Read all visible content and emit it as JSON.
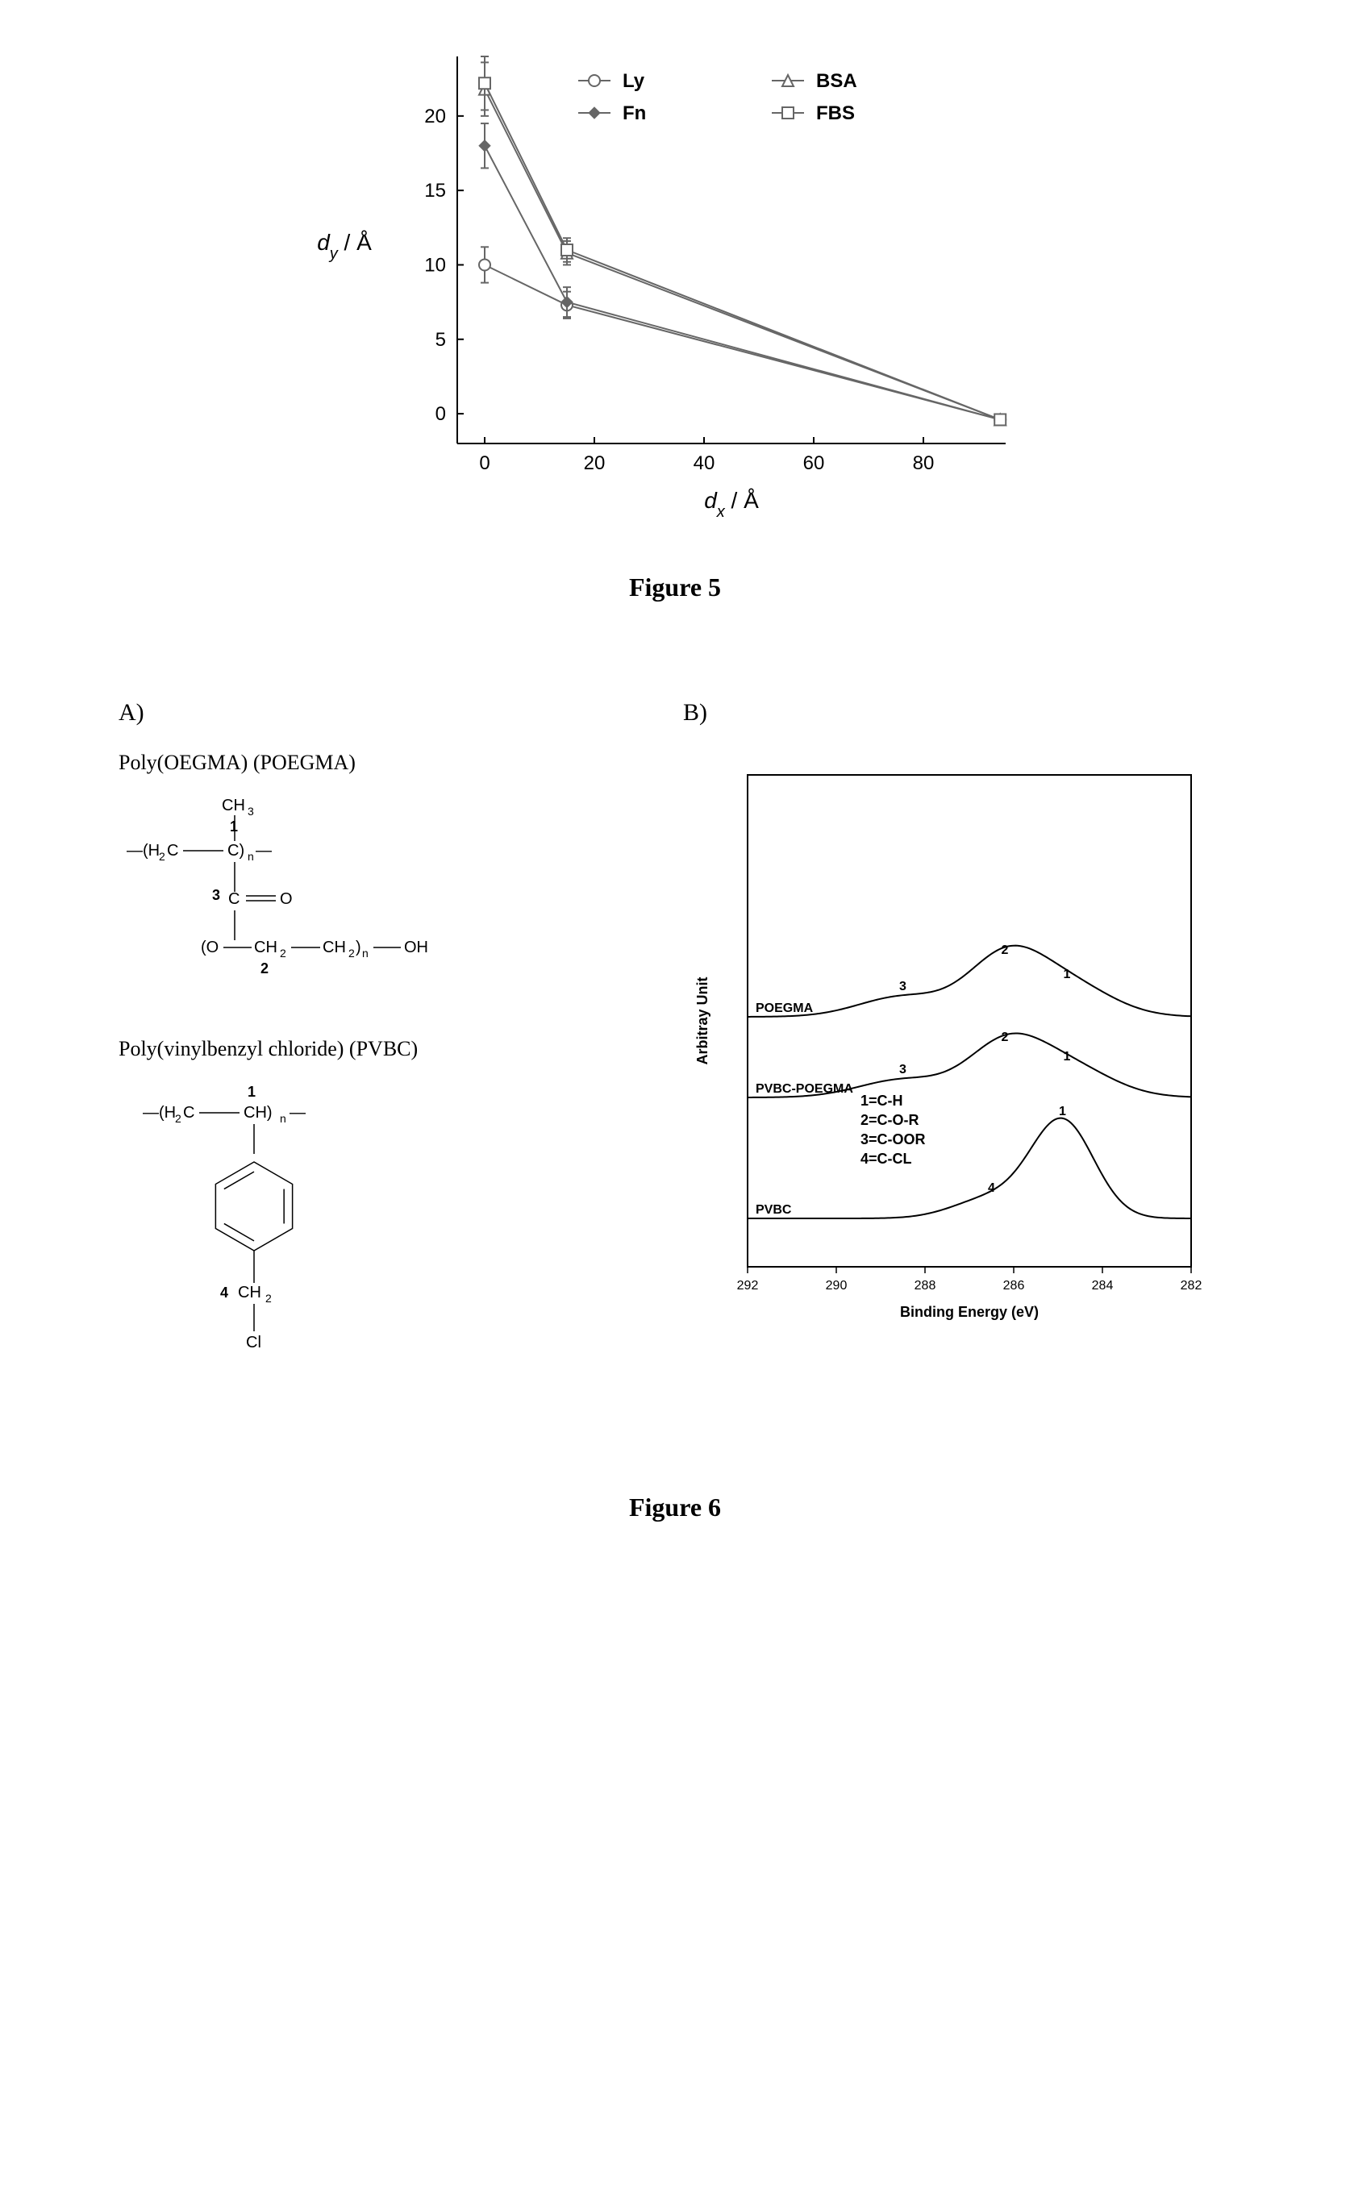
{
  "figure5": {
    "caption": "Figure 5",
    "chart": {
      "type": "line",
      "xlabel_prefix": "d",
      "xlabel_sub": "x",
      "xlabel_suffix": " / Å",
      "ylabel_prefix": "d",
      "ylabel_sub": "y",
      "ylabel_suffix": " / Å",
      "xlim": [
        -5,
        95
      ],
      "ylim": [
        -2,
        24
      ],
      "xticks": [
        0,
        20,
        40,
        60,
        80
      ],
      "yticks": [
        0,
        5,
        10,
        15,
        20
      ],
      "axis_color": "#000000",
      "tick_fontsize": 24,
      "label_fontsize": 28,
      "background_color": "#ffffff",
      "series": [
        {
          "name": "Ly",
          "marker": "circle-open",
          "color": "#666666",
          "x": [
            0,
            15,
            94
          ],
          "y": [
            10,
            7.3,
            -0.4
          ],
          "err": [
            1.2,
            0.9,
            0.3
          ]
        },
        {
          "name": "Fn",
          "marker": "diamond-fill",
          "color": "#666666",
          "x": [
            0,
            15,
            94
          ],
          "y": [
            18,
            7.5,
            -0.4
          ],
          "err": [
            1.5,
            1.0,
            0.3
          ]
        },
        {
          "name": "BSA",
          "marker": "triangle-open",
          "color": "#666666",
          "x": [
            0,
            15,
            94
          ],
          "y": [
            21.8,
            10.8,
            -0.4
          ],
          "err": [
            1.8,
            0.8,
            0.3
          ]
        },
        {
          "name": "FBS",
          "marker": "square-open",
          "color": "#666666",
          "x": [
            0,
            15,
            94
          ],
          "y": [
            22.2,
            11,
            -0.4
          ],
          "err": [
            1.8,
            0.8,
            0.3
          ]
        }
      ],
      "legend": {
        "items": [
          "Ly",
          "Fn",
          "BSA",
          "FBS"
        ],
        "position": "inside-top-right",
        "fontsize": 24
      }
    }
  },
  "figure6": {
    "caption": "Figure 6",
    "panelA": {
      "label": "A)",
      "polymer1": {
        "title": "Poly(OEGMA) (POEGMA)",
        "atoms": {
          "c1": "1",
          "c2": "2",
          "c3": "3"
        }
      },
      "polymer2": {
        "title": "Poly(vinylbenzyl chloride) (PVBC)",
        "atoms": {
          "c1": "1",
          "c4": "4"
        }
      }
    },
    "panelB": {
      "label": "B)",
      "chart": {
        "type": "xps-spectra",
        "xlabel": "Binding Energy (eV)",
        "ylabel": "Arbitray Unit",
        "xlim": [
          292,
          282
        ],
        "xticks": [
          292,
          290,
          288,
          286,
          284,
          282
        ],
        "tick_fontsize": 16,
        "label_fontsize": 18,
        "frame_color": "#000000",
        "curve_color": "#000000",
        "traces": [
          {
            "name": "POEGMA",
            "baseline": 310,
            "peaks": [
              {
                "x": 288.5,
                "h": 25,
                "w": 1.4,
                "label": "3"
              },
              {
                "x": 286.2,
                "h": 70,
                "w": 1.2,
                "label": "2"
              },
              {
                "x": 284.8,
                "h": 40,
                "w": 1.4,
                "label": "1"
              }
            ]
          },
          {
            "name": "PVBC-POEGMA",
            "baseline": 210,
            "peaks": [
              {
                "x": 288.5,
                "h": 22,
                "w": 1.4,
                "label": "3"
              },
              {
                "x": 286.2,
                "h": 62,
                "w": 1.2,
                "label": "2"
              },
              {
                "x": 284.8,
                "h": 38,
                "w": 1.4,
                "label": "1"
              }
            ]
          },
          {
            "name": "PVBC",
            "baseline": 60,
            "peaks": [
              {
                "x": 286.5,
                "h": 25,
                "w": 1.2,
                "label": "4"
              },
              {
                "x": 284.9,
                "h": 120,
                "w": 1.0,
                "label": "1"
              }
            ]
          }
        ],
        "legend_lines": [
          "1=C-H",
          "2=C-O-R",
          "3=C-OOR",
          "4=C-CL"
        ]
      }
    }
  }
}
